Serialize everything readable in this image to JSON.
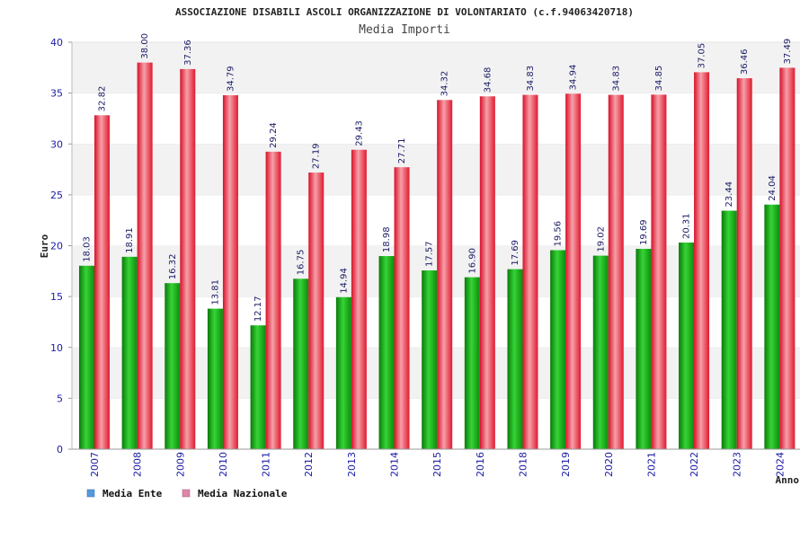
{
  "colors": {
    "ente": "#18a818",
    "nazionale": "#e8283a",
    "legend_ente": "#5599dd",
    "legend_nazionale": "#dd88aa",
    "ticks": "#1a1aa6"
  },
  "chart_data": {
    "type": "bar",
    "title": "ASSOCIAZIONE DISABILI ASCOLI ORGANIZZAZIONE DI VOLONTARIATO (c.f.94063420718)",
    "subtitle": "Media Importi",
    "xlabel": "Anno",
    "ylabel": "Euro",
    "ylim": [
      0,
      40
    ],
    "yticks": [
      "0",
      "5",
      "10",
      "15",
      "20",
      "25",
      "30",
      "35",
      "40"
    ],
    "grid": "horizontal bands",
    "legend_position": "bottom-left",
    "categories": [
      "2007",
      "2008",
      "2009",
      "2010",
      "2011",
      "2012",
      "2013",
      "2014",
      "2015",
      "2016",
      "2018",
      "2019",
      "2020",
      "2021",
      "2022",
      "2023",
      "2024"
    ],
    "series": [
      {
        "name": "Media Ente",
        "values": [
          18.03,
          18.91,
          16.32,
          13.81,
          12.17,
          16.75,
          14.94,
          18.98,
          17.57,
          16.9,
          17.69,
          19.56,
          19.02,
          19.69,
          20.31,
          23.44,
          24.04
        ],
        "labels": [
          "18.03",
          "18.91",
          "16.32",
          "13.81",
          "12.17",
          "16.75",
          "14.94",
          "18.98",
          "17.57",
          "16.90",
          "17.69",
          "19.56",
          "19.02",
          "19.69",
          "20.31",
          "23.44",
          "24.04"
        ]
      },
      {
        "name": "Media Nazionale",
        "values": [
          32.82,
          38.0,
          37.36,
          34.79,
          29.24,
          27.19,
          29.43,
          27.71,
          34.32,
          34.68,
          34.83,
          34.94,
          34.83,
          34.85,
          37.05,
          36.46,
          37.49
        ],
        "labels": [
          "32.82",
          "38.00",
          "37.36",
          "34.79",
          "29.24",
          "27.19",
          "29.43",
          "27.71",
          "34.32",
          "34.68",
          "34.83",
          "34.94",
          "34.83",
          "34.85",
          "37.05",
          "36.46",
          "37.49"
        ]
      }
    ]
  }
}
